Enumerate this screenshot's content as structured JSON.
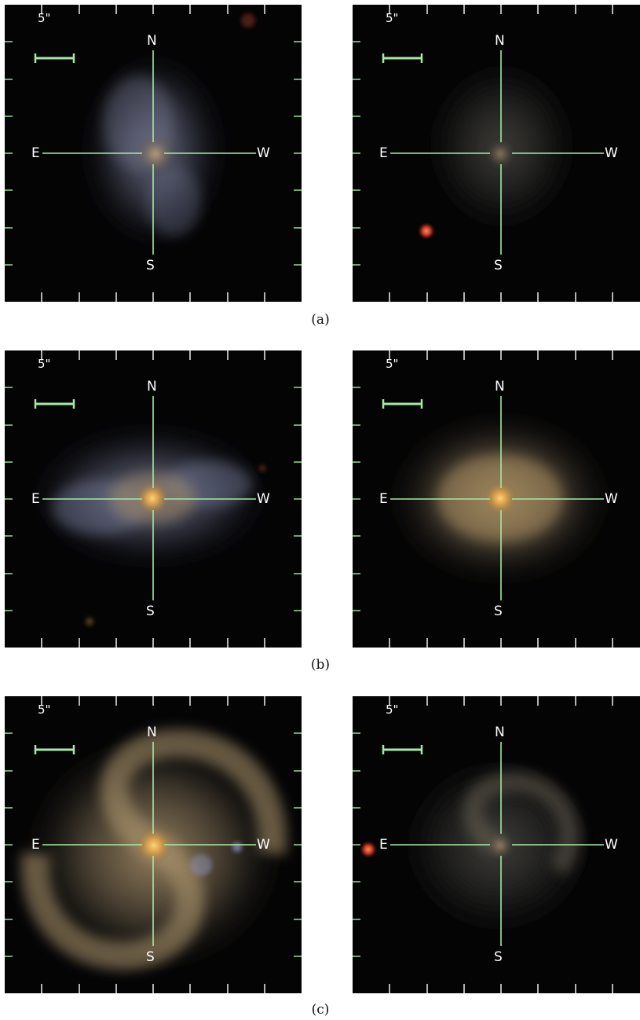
{
  "scale_label": "5\"",
  "directions": {
    "north": "N",
    "south": "S",
    "east": "E",
    "west": "W"
  },
  "colors": {
    "crosshair": "#a6e8a6",
    "background": "#040405"
  },
  "rows": [
    {
      "caption": "(a)",
      "left": {
        "galaxy": "face-on spiral, bluish disk, compact yellow nucleus"
      },
      "right": {
        "galaxy": "faint diffuse spiral, red star to the south-east"
      }
    },
    {
      "caption": "(b)",
      "left": {
        "galaxy": "barred spiral, blue arms, bright orange core"
      },
      "right": {
        "galaxy": "smooth yellow spiral, bright core"
      }
    },
    {
      "caption": "(c)",
      "left": {
        "galaxy": "grand-design two-armed spiral, bright orange core"
      },
      "right": {
        "galaxy": "faint spiral, red star at east edge"
      }
    }
  ]
}
